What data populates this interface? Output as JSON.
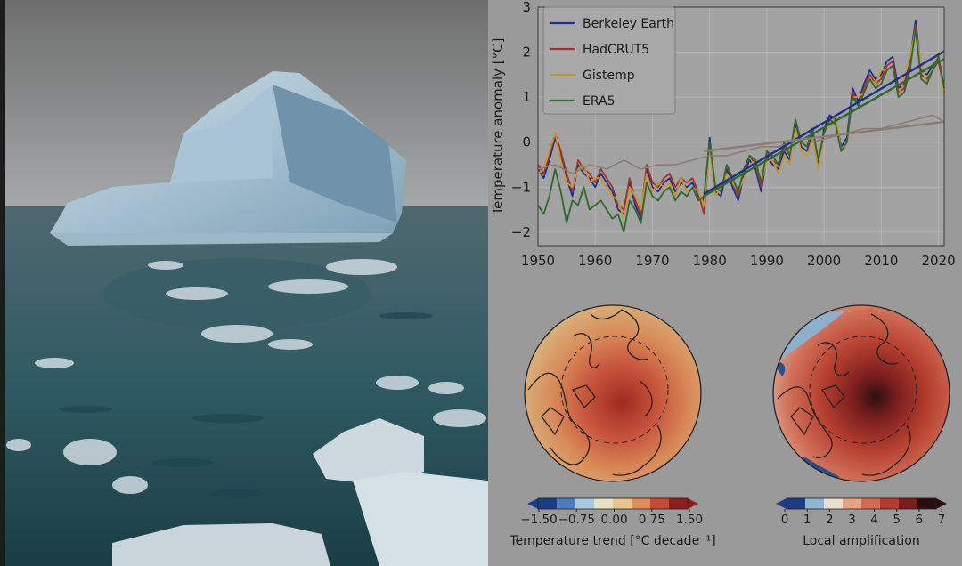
{
  "colors": {
    "berkeley": "#1f2f8f",
    "hadcrut": "#a9302a",
    "gistemp": "#c7962a",
    "era5": "#2e6a2e",
    "arctic": "#8a7c74",
    "grid": "#b4b4b4",
    "panel_bg": "#9a9a9a",
    "plot_bg": "#a3a3a3"
  },
  "photo": {
    "subject": "iceberg-with-floating-ice-fragments",
    "icon": "iceberg-photo"
  },
  "chart_data": [
    {
      "type": "line",
      "title": "",
      "xlabel": "",
      "ylabel": "Temperature anomaly [°C]",
      "xlim": [
        1950,
        2021
      ],
      "ylim": [
        -2.3,
        3
      ],
      "xticks": [
        "1950",
        "1960",
        "1970",
        "1980",
        "1990",
        "2000",
        "2010",
        "2020"
      ],
      "yticks": [
        "−2",
        "−1",
        "0",
        "1",
        "2",
        "3"
      ],
      "grid": true,
      "legend": "top-left",
      "series": [
        {
          "name": "Berkeley Earth",
          "color_key": "berkeley",
          "x": [
            1950,
            1951,
            1952,
            1953,
            1954,
            1955,
            1956,
            1957,
            1958,
            1959,
            1960,
            1961,
            1962,
            1963,
            1964,
            1965,
            1966,
            1967,
            1968,
            1969,
            1970,
            1971,
            1972,
            1973,
            1974,
            1975,
            1976,
            1977,
            1978,
            1979,
            1980,
            1981,
            1982,
            1983,
            1984,
            1985,
            1986,
            1987,
            1988,
            1989,
            1990,
            1991,
            1992,
            1993,
            1994,
            1995,
            1996,
            1997,
            1998,
            1999,
            2000,
            2001,
            2002,
            2003,
            2004,
            2005,
            2006,
            2007,
            2008,
            2009,
            2010,
            2011,
            2012,
            2013,
            2014,
            2015,
            2016,
            2017,
            2018,
            2019,
            2020,
            2021
          ],
          "y": [
            -0.6,
            -0.8,
            -0.4,
            0.1,
            -0.3,
            -0.8,
            -1.2,
            -0.5,
            -0.7,
            -0.8,
            -1.0,
            -0.7,
            -0.9,
            -1.1,
            -1.5,
            -1.6,
            -0.9,
            -1.4,
            -1.7,
            -0.6,
            -1.0,
            -1.1,
            -0.9,
            -0.8,
            -1.1,
            -0.9,
            -1.0,
            -0.9,
            -1.2,
            -1.3,
            0.1,
            -1.1,
            -1.2,
            -0.6,
            -1.0,
            -1.3,
            -0.7,
            -0.4,
            -0.6,
            -1.1,
            -0.3,
            -0.5,
            -0.6,
            -0.2,
            -0.4,
            0.4,
            -0.1,
            -0.2,
            0.2,
            -0.5,
            0.3,
            0.6,
            0.5,
            -0.1,
            0.1,
            1.2,
            0.9,
            1.3,
            1.6,
            1.4,
            1.5,
            1.8,
            1.9,
            1.2,
            1.3,
            1.8,
            2.7,
            1.6,
            1.5,
            1.7,
            1.9,
            1.2
          ]
        },
        {
          "name": "HadCRUT5",
          "color_key": "hadcrut",
          "x": [
            1950,
            1951,
            1952,
            1953,
            1954,
            1955,
            1956,
            1957,
            1958,
            1959,
            1960,
            1961,
            1962,
            1963,
            1964,
            1965,
            1966,
            1967,
            1968,
            1969,
            1970,
            1971,
            1972,
            1973,
            1974,
            1975,
            1976,
            1977,
            1978,
            1979,
            1980,
            1981,
            1982,
            1983,
            1984,
            1985,
            1986,
            1987,
            1988,
            1989,
            1990,
            1991,
            1992,
            1993,
            1994,
            1995,
            1996,
            1997,
            1998,
            1999,
            2000,
            2001,
            2002,
            2003,
            2004,
            2005,
            2006,
            2007,
            2008,
            2009,
            2010,
            2011,
            2012,
            2013,
            2014,
            2015,
            2016,
            2017,
            2018,
            2019,
            2020,
            2021
          ],
          "y": [
            -0.5,
            -0.7,
            -0.3,
            0.2,
            -0.2,
            -0.7,
            -1.1,
            -0.4,
            -0.6,
            -0.7,
            -0.9,
            -0.6,
            -0.8,
            -1.0,
            -1.4,
            -1.5,
            -0.8,
            -1.3,
            -1.6,
            -0.5,
            -0.9,
            -1.0,
            -0.8,
            -0.7,
            -1.0,
            -0.8,
            -0.9,
            -0.8,
            -1.1,
            -1.6,
            0.0,
            -1.0,
            -1.1,
            -0.5,
            -0.9,
            -1.2,
            -0.6,
            -0.3,
            -0.5,
            -1.0,
            -0.2,
            -0.4,
            -0.5,
            -0.1,
            -0.3,
            0.5,
            0.0,
            -0.1,
            0.3,
            -0.4,
            0.2,
            0.5,
            0.4,
            -0.2,
            0.0,
            1.1,
            0.8,
            1.2,
            1.5,
            1.3,
            1.4,
            1.7,
            1.8,
            1.1,
            1.2,
            1.7,
            2.6,
            1.5,
            1.4,
            1.6,
            1.8,
            1.1
          ]
        },
        {
          "name": "Gistemp",
          "color_key": "gistemp",
          "x": [
            1950,
            1951,
            1952,
            1953,
            1954,
            1955,
            1956,
            1957,
            1958,
            1959,
            1960,
            1961,
            1962,
            1963,
            1964,
            1965,
            1966,
            1967,
            1968,
            1969,
            1970,
            1971,
            1972,
            1973,
            1974,
            1975,
            1976,
            1977,
            1978,
            1979,
            1980,
            1981,
            1982,
            1983,
            1984,
            1985,
            1986,
            1987,
            1988,
            1989,
            1990,
            1991,
            1992,
            1993,
            1994,
            1995,
            1996,
            1997,
            1998,
            1999,
            2000,
            2001,
            2002,
            2003,
            2004,
            2005,
            2006,
            2007,
            2008,
            2009,
            2010,
            2011,
            2012,
            2013,
            2014,
            2015,
            2016,
            2017,
            2018,
            2019,
            2020,
            2021
          ],
          "y": [
            -0.7,
            -0.6,
            -0.2,
            0.2,
            -0.4,
            -0.9,
            -1.0,
            -0.6,
            -0.5,
            -0.9,
            -0.8,
            -0.8,
            -1.0,
            -1.2,
            -1.3,
            -1.7,
            -1.0,
            -1.2,
            -1.5,
            -0.7,
            -1.1,
            -0.9,
            -1.0,
            -0.9,
            -1.2,
            -0.8,
            -1.1,
            -1.0,
            -1.1,
            -1.4,
            -0.1,
            -1.2,
            -1.0,
            -0.7,
            -0.9,
            -1.1,
            -0.8,
            -0.5,
            -0.4,
            -0.9,
            -0.4,
            -0.4,
            -0.7,
            -0.3,
            -0.5,
            0.3,
            -0.2,
            -0.3,
            0.1,
            -0.6,
            0.2,
            0.4,
            0.6,
            -0.2,
            0.0,
            1.0,
            1.0,
            1.1,
            1.4,
            1.3,
            1.6,
            1.6,
            1.7,
            1.0,
            1.4,
            1.9,
            2.5,
            1.7,
            1.3,
            1.6,
            2.0,
            1.0
          ]
        },
        {
          "name": "ERA5",
          "color_key": "era5",
          "x": [
            1950,
            1951,
            1952,
            1953,
            1954,
            1955,
            1956,
            1957,
            1958,
            1959,
            1960,
            1961,
            1962,
            1963,
            1964,
            1965,
            1966,
            1967,
            1968,
            1969,
            1970,
            1971,
            1972,
            1973,
            1974,
            1975,
            1976,
            1977,
            1978,
            1979,
            1980,
            1981,
            1982,
            1983,
            1984,
            1985,
            1986,
            1987,
            1988,
            1989,
            1990,
            1991,
            1992,
            1993,
            1994,
            1995,
            1996,
            1997,
            1998,
            1999,
            2000,
            2001,
            2002,
            2003,
            2004,
            2005,
            2006,
            2007,
            2008,
            2009,
            2010,
            2011,
            2012,
            2013,
            2014,
            2015,
            2016,
            2017,
            2018,
            2019,
            2020,
            2021
          ],
          "y": [
            -1.4,
            -1.6,
            -1.2,
            -0.6,
            -1.1,
            -1.8,
            -1.3,
            -1.4,
            -1.0,
            -1.5,
            -1.4,
            -1.3,
            -1.5,
            -1.7,
            -1.6,
            -2.0,
            -1.3,
            -1.5,
            -1.8,
            -0.9,
            -1.2,
            -1.3,
            -1.1,
            -1.0,
            -1.3,
            -1.1,
            -1.2,
            -1.0,
            -1.3,
            -1.2,
            0.0,
            -1.0,
            -1.1,
            -0.5,
            -0.8,
            -1.1,
            -0.6,
            -0.3,
            -0.4,
            -0.9,
            -0.2,
            -0.3,
            -0.5,
            0.0,
            -0.3,
            0.5,
            0.0,
            -0.1,
            0.3,
            -0.4,
            0.2,
            0.5,
            0.4,
            -0.2,
            0.0,
            1.0,
            0.8,
            1.1,
            1.4,
            1.2,
            1.3,
            1.6,
            1.7,
            1.0,
            1.1,
            1.6,
            2.5,
            1.4,
            1.3,
            1.6,
            1.9,
            1.2
          ]
        },
        {
          "name": "",
          "color_key": "arctic",
          "x": [
            1950,
            1953,
            1956,
            1959,
            1962,
            1965,
            1968,
            1971,
            1974,
            1977,
            1980,
            1983,
            1986,
            1989,
            1992,
            1995,
            1998,
            2001,
            2004,
            2007,
            2010,
            2013,
            2016,
            2019,
            2021
          ],
          "y": [
            -0.6,
            -0.5,
            -0.7,
            -0.5,
            -0.6,
            -0.4,
            -0.6,
            -0.5,
            -0.5,
            -0.4,
            -0.3,
            -0.3,
            -0.2,
            -0.1,
            -0.1,
            0.0,
            0.0,
            0.1,
            0.2,
            0.3,
            0.3,
            0.4,
            0.5,
            0.6,
            0.45
          ]
        }
      ],
      "trends": [
        {
          "color_key": "berkeley",
          "x": [
            1979,
            2021
          ],
          "y": [
            -1.15,
            2.02
          ]
        },
        {
          "color_key": "era5",
          "x": [
            1979,
            2021
          ],
          "y": [
            -1.2,
            1.85
          ]
        },
        {
          "color_key": "arctic",
          "x": [
            1979,
            2021
          ],
          "y": [
            -0.2,
            0.45
          ]
        }
      ]
    },
    {
      "type": "heatmap",
      "subtype": "polar-map",
      "icon": "arctic-polar-map-temperature-trend",
      "colorbar": {
        "label": "Temperature trend [°C decade⁻¹]",
        "ticks": [
          "−1.50",
          "−0.75",
          "0.00",
          "0.75",
          "1.50"
        ],
        "range": [
          -1.5,
          1.5
        ],
        "colors": [
          "#1b3d8a",
          "#4a7cc0",
          "#a9c9e0",
          "#e6e3c4",
          "#eac48a",
          "#e08d55",
          "#c84a32",
          "#8f1d1d"
        ]
      }
    },
    {
      "type": "heatmap",
      "subtype": "polar-map",
      "icon": "arctic-polar-map-local-amplification",
      "colorbar": {
        "label": "Local amplification",
        "ticks": [
          "0",
          "1",
          "2",
          "3",
          "4",
          "5",
          "6",
          "7"
        ],
        "range": [
          0,
          7
        ],
        "colors": [
          "#1b3d8a",
          "#8fb4d6",
          "#eadfcf",
          "#e8a27f",
          "#d96a4f",
          "#b43b2e",
          "#7d1d1d",
          "#2a0e0e"
        ]
      }
    }
  ]
}
